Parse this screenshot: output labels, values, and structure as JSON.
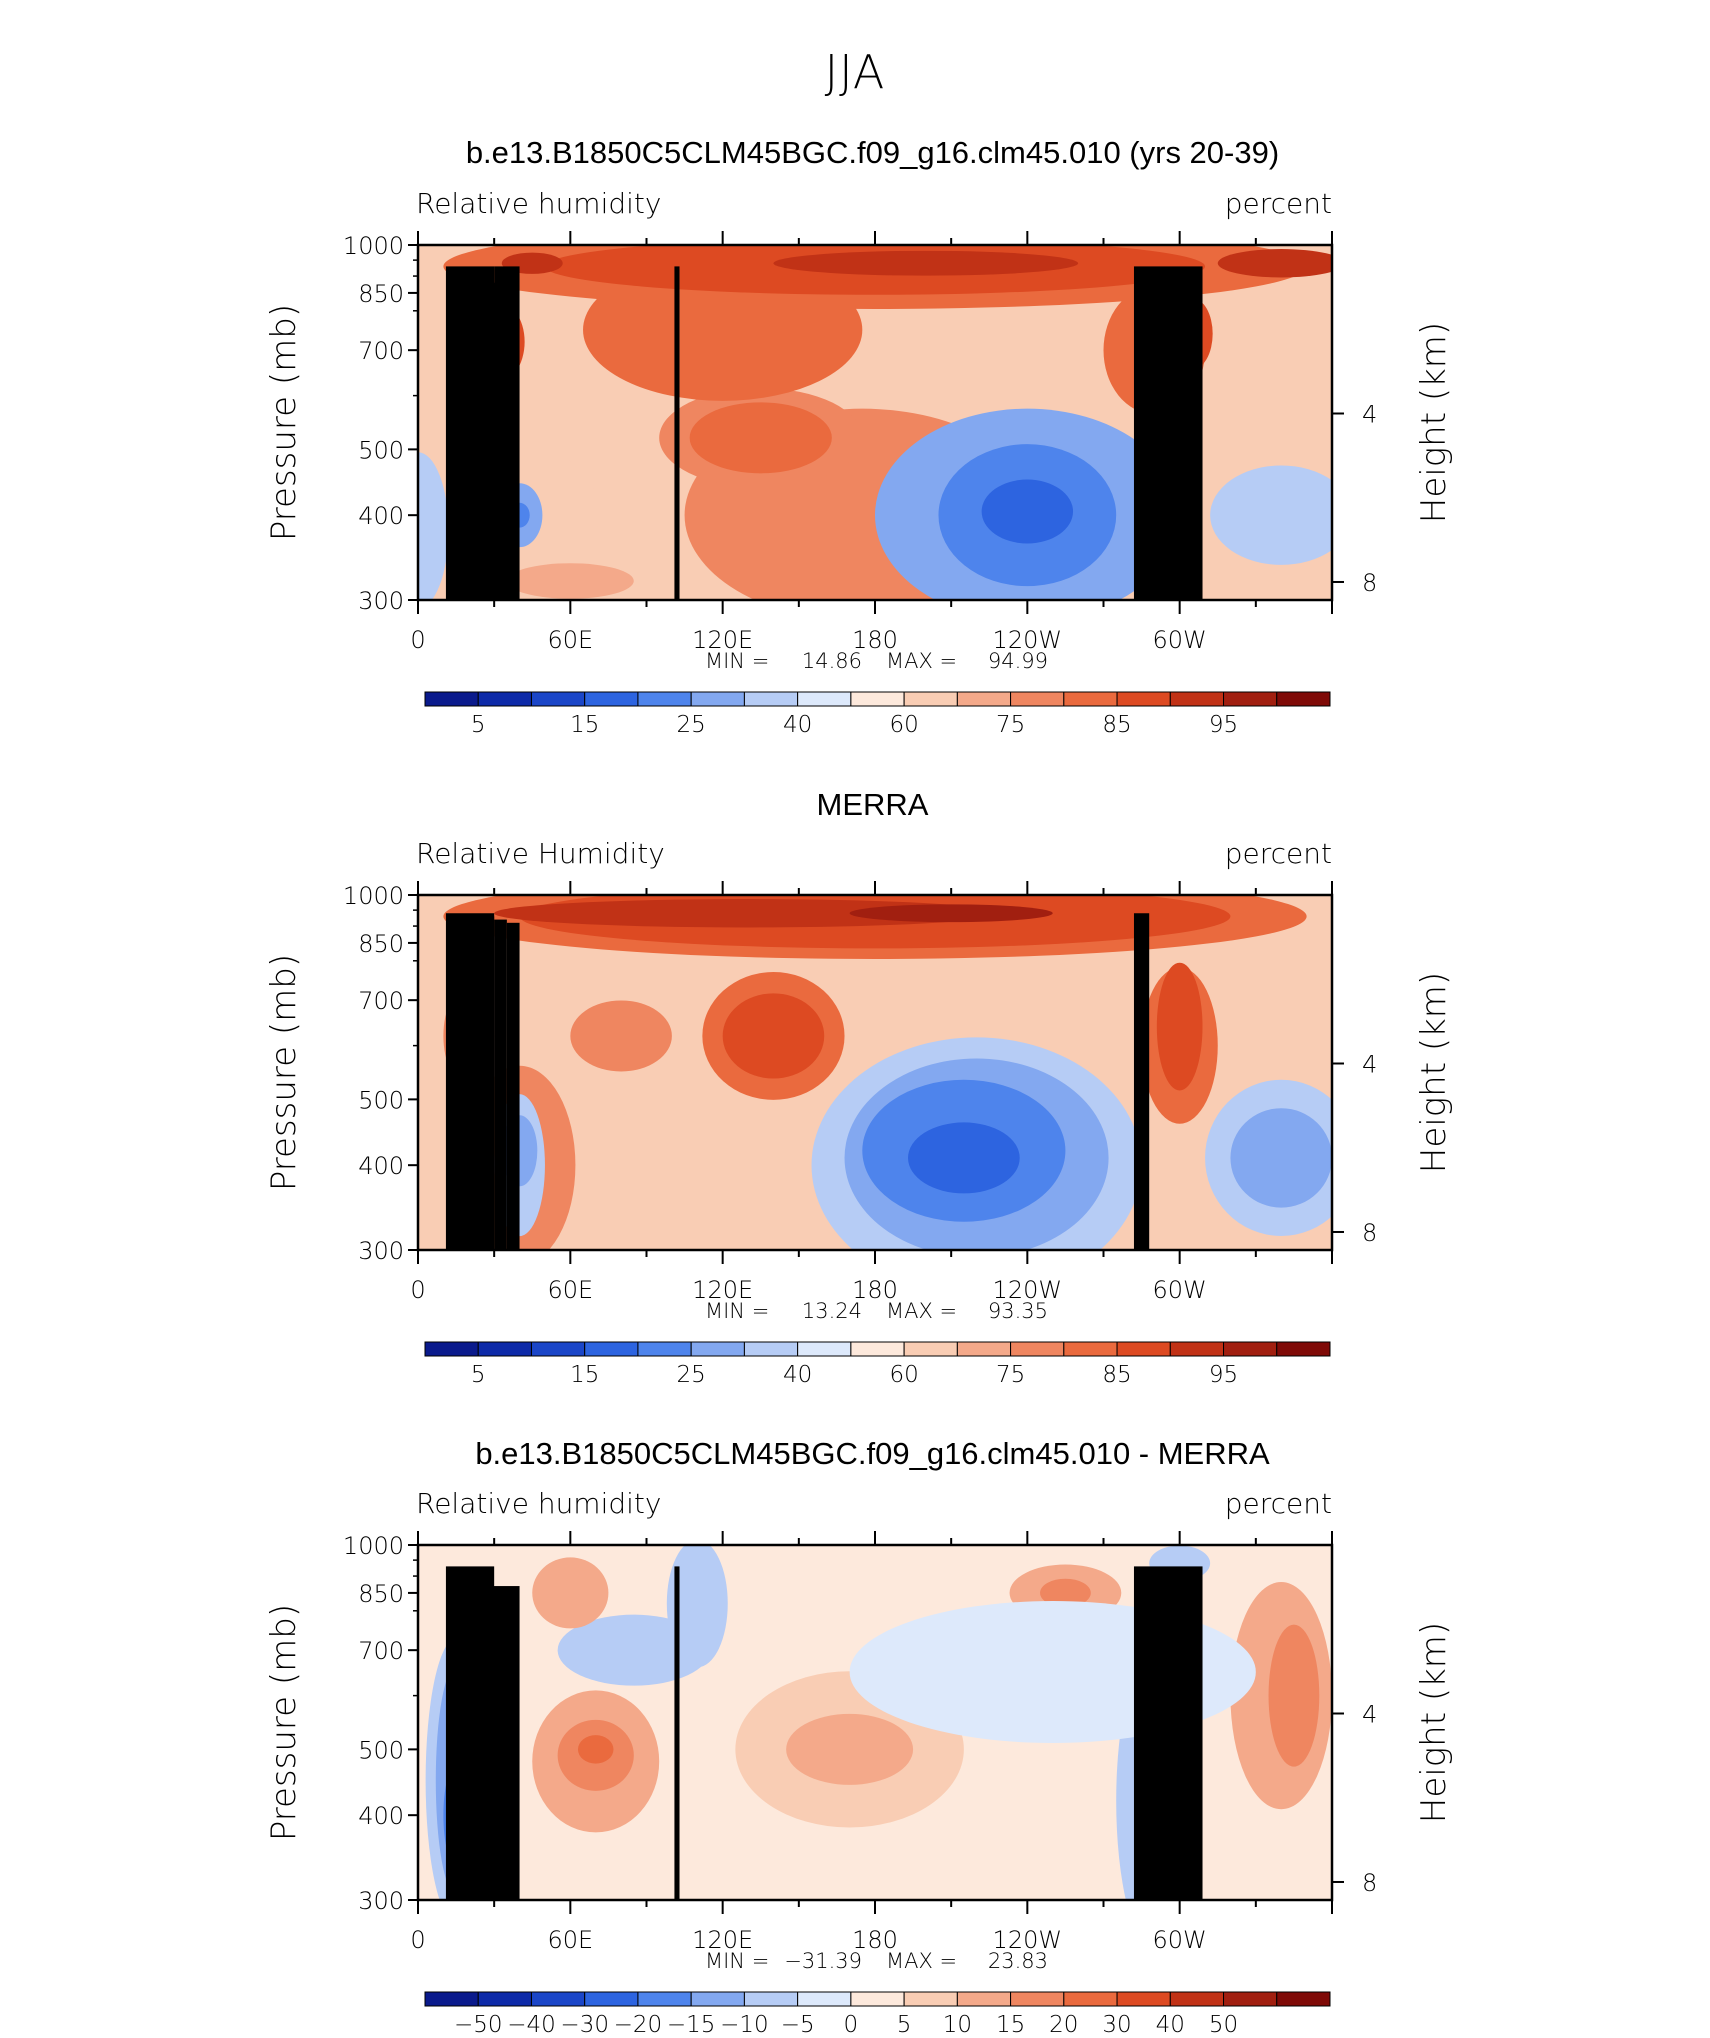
{
  "main_title": "JJA",
  "chart_data": [
    {
      "type": "heatmap",
      "title": "b.e13.B1850C5CLM45BGC.f09_g16.clm45.010 (yrs 20-39)",
      "variable_label": "Relative humidity",
      "units_label": "percent",
      "ylabel": "Pressure (mb)",
      "ylabel_right": "Height (km)",
      "pressure_ticks": [
        "300",
        "400",
        "500",
        "700",
        "850",
        "1000"
      ],
      "height_ticks": [
        "8",
        "4"
      ],
      "lon_ticks": [
        "0",
        "60E",
        "120E",
        "180",
        "120W",
        "60W"
      ],
      "min_label": "MIN =",
      "min_value": "14.86",
      "max_label": "MAX =",
      "max_value": "94.99",
      "colorbar_labels": [
        "5",
        "15",
        "25",
        "40",
        "60",
        "75",
        "85",
        "95"
      ],
      "colorbar_colors": [
        "#0a1a8c",
        "#0d2aa8",
        "#1b46c8",
        "#2d64e0",
        "#4e84ec",
        "#83a8f0",
        "#b6ccf5",
        "#dde9fb",
        "#fde9dc",
        "#f9cdb4",
        "#f4a98a",
        "#ef8660",
        "#ea6a3e",
        "#dd4a22",
        "#c13216",
        "#a11f10",
        "#7f0a07"
      ],
      "x_range": [
        0,
        360
      ],
      "y_range": [
        1000,
        300
      ],
      "grid": false
    },
    {
      "type": "heatmap",
      "title": "MERRA",
      "variable_label": "Relative Humidity",
      "units_label": "percent",
      "ylabel": "Pressure (mb)",
      "ylabel_right": "Height (km)",
      "pressure_ticks": [
        "300",
        "400",
        "500",
        "700",
        "850",
        "1000"
      ],
      "height_ticks": [
        "8",
        "4"
      ],
      "lon_ticks": [
        "0",
        "60E",
        "120E",
        "180",
        "120W",
        "60W"
      ],
      "min_label": "MIN =",
      "min_value": "13.24",
      "max_label": "MAX =",
      "max_value": "93.35",
      "colorbar_labels": [
        "5",
        "15",
        "25",
        "40",
        "60",
        "75",
        "85",
        "95"
      ],
      "colorbar_colors": [
        "#0a1a8c",
        "#0d2aa8",
        "#1b46c8",
        "#2d64e0",
        "#4e84ec",
        "#83a8f0",
        "#b6ccf5",
        "#dde9fb",
        "#fde9dc",
        "#f9cdb4",
        "#f4a98a",
        "#ef8660",
        "#ea6a3e",
        "#dd4a22",
        "#c13216",
        "#a11f10",
        "#7f0a07"
      ],
      "x_range": [
        0,
        360
      ],
      "y_range": [
        1000,
        300
      ],
      "grid": false
    },
    {
      "type": "heatmap",
      "title": "b.e13.B1850C5CLM45BGC.f09_g16.clm45.010 - MERRA",
      "variable_label": "Relative humidity",
      "units_label": "percent",
      "ylabel": "Pressure (mb)",
      "ylabel_right": "Height (km)",
      "pressure_ticks": [
        "300",
        "400",
        "500",
        "700",
        "850",
        "1000"
      ],
      "height_ticks": [
        "8",
        "4"
      ],
      "lon_ticks": [
        "0",
        "60E",
        "120E",
        "180",
        "120W",
        "60W"
      ],
      "min_label": "MIN =",
      "min_value": "−31.39",
      "max_label": "MAX =",
      "max_value": "23.83",
      "colorbar_labels": [
        "−50",
        "−40",
        "−30",
        "−20",
        "−15",
        "−10",
        "−5",
        "0",
        "5",
        "10",
        "15",
        "20",
        "30",
        "40",
        "50"
      ],
      "colorbar_colors": [
        "#0a1a8c",
        "#0d2aa8",
        "#1b46c8",
        "#2d64e0",
        "#4e84ec",
        "#83a8f0",
        "#b6ccf5",
        "#dde9fb",
        "#fde9dc",
        "#f9cdb4",
        "#f4a98a",
        "#ef8660",
        "#ea6a3e",
        "#dd4a22",
        "#c13216",
        "#a11f10",
        "#7f0a07"
      ],
      "x_range": [
        0,
        360
      ],
      "y_range": [
        1000,
        300
      ],
      "grid": false
    }
  ]
}
